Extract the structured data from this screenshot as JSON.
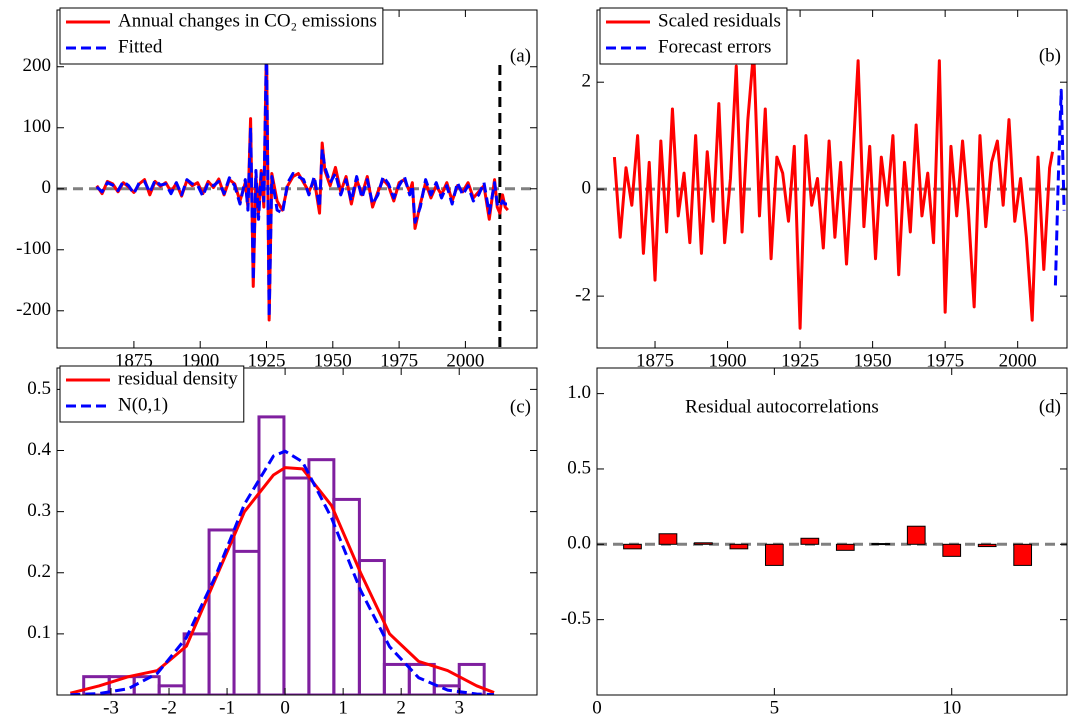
{
  "chart_data": [
    {
      "type": "line",
      "panel_label": "(a)",
      "legend": "upper left",
      "xlim": [
        1846,
        2027
      ],
      "ylim": [
        -261,
        293
      ],
      "xticks": [
        1875,
        1900,
        1925,
        1950,
        1975,
        2000
      ],
      "yticks": [
        -200,
        -100,
        0,
        100,
        200
      ],
      "hline": 0,
      "vline": 2013,
      "x": [
        1861,
        1863,
        1865,
        1867,
        1869,
        1871,
        1873,
        1875,
        1877,
        1879,
        1881,
        1883,
        1885,
        1887,
        1889,
        1891,
        1893,
        1895,
        1897,
        1899,
        1901,
        1903,
        1905,
        1907,
        1909,
        1911,
        1913,
        1915,
        1917,
        1918,
        1919,
        1920,
        1921,
        1922,
        1923,
        1924,
        1925,
        1926,
        1927,
        1929,
        1931,
        1933,
        1935,
        1937,
        1939,
        1941,
        1943,
        1945,
        1946,
        1947,
        1949,
        1951,
        1953,
        1955,
        1957,
        1959,
        1961,
        1963,
        1965,
        1967,
        1969,
        1971,
        1973,
        1975,
        1977,
        1979,
        1980,
        1981,
        1983,
        1985,
        1987,
        1989,
        1991,
        1993,
        1995,
        1997,
        1999,
        2001,
        2003,
        2005,
        2007,
        2009,
        2011,
        2012,
        2013,
        2014,
        2015,
        2016
      ],
      "series": [
        {
          "name": "Annual changes in CO₂ emissions",
          "color": "#ff0000",
          "style": "solid",
          "values": [
            5,
            -8,
            12,
            8,
            -5,
            10,
            3,
            -6,
            8,
            15,
            -10,
            12,
            4,
            10,
            -5,
            9,
            -12,
            14,
            5,
            10,
            -8,
            12,
            2,
            16,
            -10,
            15,
            8,
            -20,
            10,
            -30,
            115,
            -160,
            20,
            -40,
            30,
            -30,
            240,
            -215,
            25,
            -20,
            -35,
            5,
            20,
            25,
            10,
            -5,
            15,
            -40,
            75,
            30,
            5,
            35,
            -5,
            20,
            -25,
            15,
            -10,
            20,
            -30,
            -5,
            15,
            5,
            -20,
            10,
            15,
            -5,
            10,
            -65,
            -25,
            10,
            -15,
            5,
            -10,
            10,
            -20,
            5,
            -5,
            10,
            -15,
            -5,
            5,
            -50,
            15,
            -30,
            -40,
            -10,
            -30,
            -35
          ]
        },
        {
          "name": "Fitted",
          "color": "#0000ff",
          "style": "dashed",
          "values": [
            3,
            -5,
            10,
            6,
            -3,
            12,
            5,
            -8,
            10,
            12,
            -6,
            14,
            6,
            8,
            -8,
            10,
            -10,
            15,
            8,
            6,
            -12,
            10,
            5,
            12,
            -8,
            18,
            5,
            -25,
            15,
            -35,
            100,
            -150,
            30,
            -50,
            25,
            -20,
            235,
            -210,
            20,
            -35,
            -40,
            10,
            25,
            20,
            15,
            -10,
            20,
            -30,
            65,
            35,
            10,
            25,
            -10,
            15,
            -20,
            20,
            -15,
            15,
            -25,
            -10,
            20,
            8,
            -15,
            5,
            20,
            -10,
            5,
            -55,
            -30,
            15,
            -10,
            10,
            -15,
            5,
            -25,
            10,
            -10,
            5,
            -20,
            -10,
            10,
            -40,
            10,
            -25,
            -30,
            -20,
            -25,
            -25
          ]
        }
      ]
    },
    {
      "type": "line",
      "panel_label": "(b)",
      "legend": "upper left",
      "xlim": [
        1855,
        2017
      ],
      "ylim": [
        -2.97,
        3.35
      ],
      "xticks": [
        1875,
        1900,
        1925,
        1950,
        1975,
        2000
      ],
      "yticks": [
        -2,
        0,
        2
      ],
      "hline": 0,
      "series": [
        {
          "name": "Scaled residuals",
          "color": "#ff0000",
          "style": "solid",
          "x": [
            1861,
            1863,
            1865,
            1867,
            1869,
            1871,
            1873,
            1875,
            1877,
            1879,
            1881,
            1883,
            1885,
            1887,
            1889,
            1891,
            1893,
            1895,
            1897,
            1899,
            1901,
            1903,
            1905,
            1907,
            1909,
            1911,
            1913,
            1915,
            1917,
            1919,
            1921,
            1923,
            1925,
            1927,
            1929,
            1931,
            1933,
            1935,
            1937,
            1939,
            1941,
            1943,
            1945,
            1947,
            1949,
            1951,
            1953,
            1955,
            1957,
            1959,
            1961,
            1963,
            1965,
            1967,
            1969,
            1971,
            1973,
            1975,
            1977,
            1979,
            1981,
            1983,
            1985,
            1987,
            1989,
            1991,
            1993,
            1995,
            1997,
            1999,
            2001,
            2003,
            2005,
            2007,
            2009,
            2011,
            2012
          ],
          "values": [
            0.6,
            -0.9,
            0.4,
            -0.3,
            1.0,
            -1.2,
            0.5,
            -1.7,
            0.9,
            -0.8,
            1.5,
            -0.5,
            0.3,
            -1.0,
            1.0,
            -1.2,
            0.7,
            -0.6,
            1.6,
            -1.0,
            0.2,
            2.3,
            -0.8,
            1.3,
            2.6,
            -0.5,
            1.5,
            -1.3,
            0.6,
            0.3,
            -0.6,
            0.8,
            -2.6,
            1.0,
            -0.3,
            0.2,
            -1.1,
            0.9,
            -0.9,
            0.5,
            -1.4,
            0.4,
            2.4,
            -0.7,
            0.8,
            -1.3,
            0.6,
            -0.3,
            1.0,
            -1.6,
            0.5,
            -0.8,
            1.2,
            -0.5,
            0.3,
            -1.0,
            2.4,
            -2.3,
            0.8,
            -0.5,
            0.9,
            -0.4,
            -2.2,
            1.0,
            -0.7,
            0.5,
            0.9,
            -0.3,
            1.3,
            -0.6,
            0.2,
            -0.9,
            -2.45,
            0.6,
            -1.5,
            0.4,
            0.7
          ]
        },
        {
          "name": "Forecast errors",
          "color": "#0000ff",
          "style": "dashed",
          "x": [
            2013,
            2014,
            2015,
            2016
          ],
          "values": [
            -1.8,
            0.2,
            1.85,
            -0.4
          ]
        }
      ]
    },
    {
      "type": "histogram",
      "panel_label": "(c)",
      "legend": "upper left",
      "xlim": [
        -3.93,
        4.34
      ],
      "ylim": [
        0,
        0.535
      ],
      "xticks": [
        -3,
        -2,
        -1,
        0,
        1,
        2,
        3
      ],
      "yticks": [
        0.1,
        0.2,
        0.3,
        0.4,
        0.5
      ],
      "color": "#7f1f9f",
      "bins": [
        -3.47,
        -3.03,
        -2.6,
        -2.17,
        -1.74,
        -1.31,
        -0.88,
        -0.45,
        -0.02,
        0.41,
        0.84,
        1.28,
        1.71,
        2.14,
        2.57,
        3.0,
        3.43
      ],
      "values": [
        0.03,
        0.03,
        0.03,
        0.015,
        0.1,
        0.27,
        0.235,
        0.455,
        0.355,
        0.385,
        0.32,
        0.22,
        0.05,
        0.05,
        0.015,
        0.05
      ],
      "x": [
        -3.7,
        -3.2,
        -2.7,
        -2.2,
        -1.7,
        -1.2,
        -0.7,
        -0.2,
        0,
        0.3,
        0.8,
        1.3,
        1.8,
        2.3,
        2.8,
        3.3,
        3.6
      ],
      "series": [
        {
          "name": "residual density",
          "color": "#ff0000",
          "style": "solid",
          "values": [
            0.003,
            0.015,
            0.03,
            0.04,
            0.08,
            0.19,
            0.3,
            0.36,
            0.372,
            0.37,
            0.31,
            0.2,
            0.1,
            0.055,
            0.04,
            0.015,
            0.004
          ]
        },
        {
          "name": "N(0,1)",
          "color": "#0000ff",
          "style": "dashed",
          "values": [
            0.0004,
            0.0024,
            0.0104,
            0.0355,
            0.094,
            0.1942,
            0.3123,
            0.391,
            0.3989,
            0.3814,
            0.2897,
            0.1714,
            0.079,
            0.0283,
            0.0079,
            0.0017,
            0.0006
          ]
        }
      ]
    },
    {
      "type": "bar",
      "panel_label": "(d)",
      "title": "Residual autocorrelations",
      "xlim": [
        0,
        13.25
      ],
      "ylim": [
        -1,
        1.17
      ],
      "xticks": [
        0,
        5,
        10
      ],
      "yticks": [
        -0.5,
        {
          "value": 0,
          "label": "0.0"
        },
        0.5,
        {
          "value": 1,
          "label": "1.0"
        }
      ],
      "hline": 0,
      "color": "#ff0000",
      "x": [
        1,
        2,
        3,
        4,
        5,
        6,
        7,
        8,
        9,
        10,
        11,
        12
      ],
      "values": [
        -0.03,
        0.07,
        0.01,
        -0.03,
        -0.14,
        0.04,
        -0.04,
        0.005,
        0.12,
        -0.08,
        -0.015,
        -0.14
      ]
    }
  ]
}
